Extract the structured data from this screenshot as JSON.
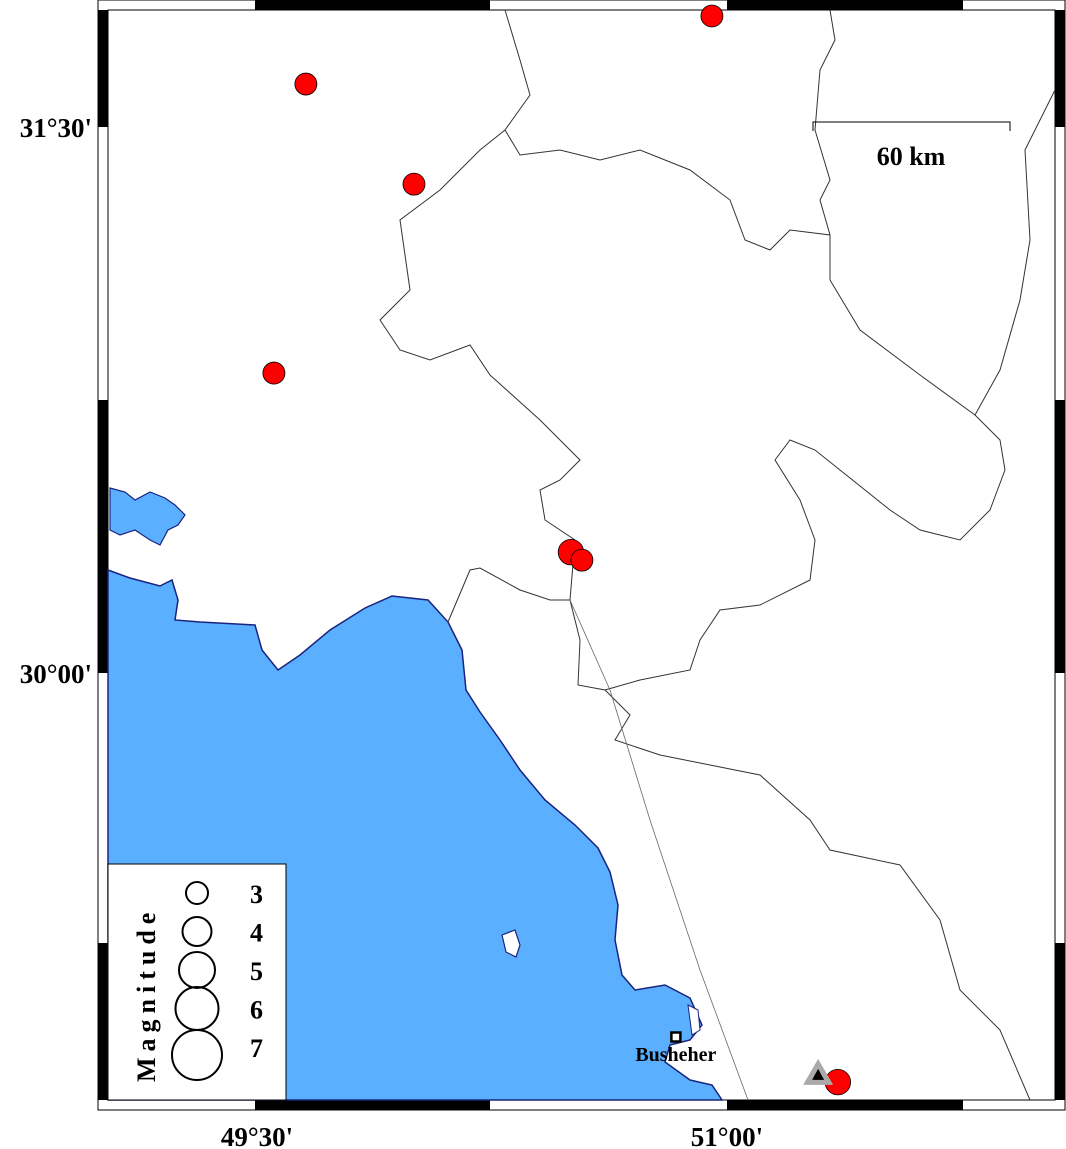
{
  "map": {
    "colors": {
      "sea": "#5aafff",
      "coast": "#1a237e",
      "border": "#333333",
      "event": "#ff0000",
      "station": "#000000",
      "station_halo": "#aaaaaa"
    },
    "lon_ticks": [
      {
        "value": 49.5,
        "label": "49°30'"
      },
      {
        "value": 51.0,
        "label": "51°00'"
      }
    ],
    "lat_ticks": [
      {
        "value": 31.5,
        "label": "31°30'"
      },
      {
        "value": 30.0,
        "label": "30°00'"
      }
    ],
    "scale_bar": {
      "label": "60 km",
      "km": 60
    },
    "city": {
      "name": "Busheher",
      "lon": 50.837,
      "lat": 29.0
    },
    "station": {
      "lon": 51.291,
      "lat": 28.896,
      "icon": "triangle-icon"
    },
    "events": [
      {
        "lon": 50.952,
        "lat": 31.805,
        "mag": 3.0
      },
      {
        "lon": 49.656,
        "lat": 31.618,
        "mag": 3.0
      },
      {
        "lon": 50.001,
        "lat": 31.343,
        "mag": 3.0
      },
      {
        "lon": 49.554,
        "lat": 30.824,
        "mag": 3.0
      },
      {
        "lon": 50.502,
        "lat": 30.332,
        "mag": 3.5
      },
      {
        "lon": 50.537,
        "lat": 30.31,
        "mag": 3.0
      },
      {
        "lon": 51.354,
        "lat": 28.876,
        "mag": 3.5
      }
    ],
    "legend": {
      "title": "Magnitude",
      "items": [
        {
          "mag": 3,
          "label": "3"
        },
        {
          "mag": 4,
          "label": "4"
        },
        {
          "mag": 5,
          "label": "5"
        },
        {
          "mag": 6,
          "label": "6"
        },
        {
          "mag": 7,
          "label": "7"
        }
      ]
    }
  }
}
